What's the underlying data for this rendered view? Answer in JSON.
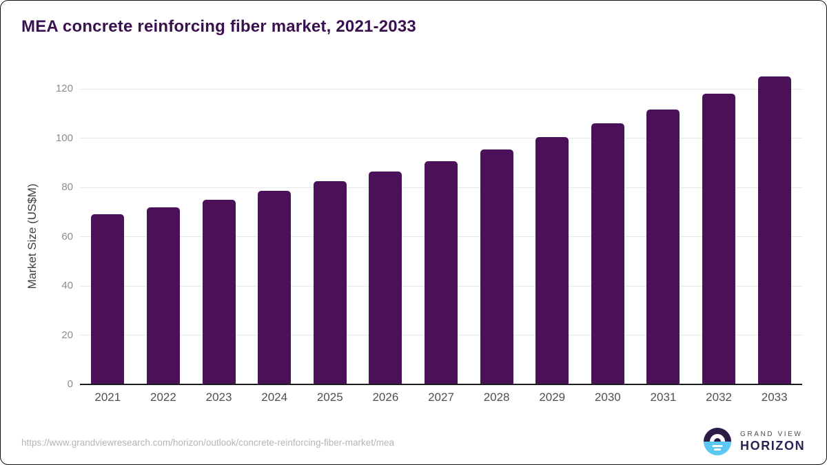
{
  "title": "MEA concrete reinforcing fiber market, 2021-2033",
  "source_url": "https://www.grandviewresearch.com/horizon/outlook/concrete-reinforcing-fiber-market/mea",
  "logo": {
    "line1": "GRAND VIEW",
    "line2": "HORIZON"
  },
  "colors": {
    "bar": "#4a1158",
    "title": "#3a1150",
    "gridline": "#e9e9e9",
    "axis": "#1c1c1c",
    "ytick_label": "#8c8c8c",
    "xtick_label": "#4f4f4f",
    "url_text": "#b5b5b5",
    "logo_purple": "#2e1a47",
    "logo_blue": "#5ac8f2"
  },
  "chart_data": {
    "type": "bar",
    "title": "MEA concrete reinforcing fiber market, 2021-2033",
    "categories": [
      "2021",
      "2022",
      "2023",
      "2024",
      "2025",
      "2026",
      "2027",
      "2028",
      "2029",
      "2030",
      "2031",
      "2032",
      "2033"
    ],
    "values": [
      69,
      72,
      75,
      78.5,
      82.5,
      86.5,
      90.5,
      95.5,
      100.5,
      106,
      111.5,
      118,
      125
    ],
    "xlabel": "",
    "ylabel": "Market Size (US$M)",
    "ylim": [
      0,
      130
    ],
    "yticks": [
      0,
      20,
      40,
      60,
      80,
      100,
      120
    ],
    "grid": true,
    "legend": false,
    "bar_color": "#4a1158"
  }
}
